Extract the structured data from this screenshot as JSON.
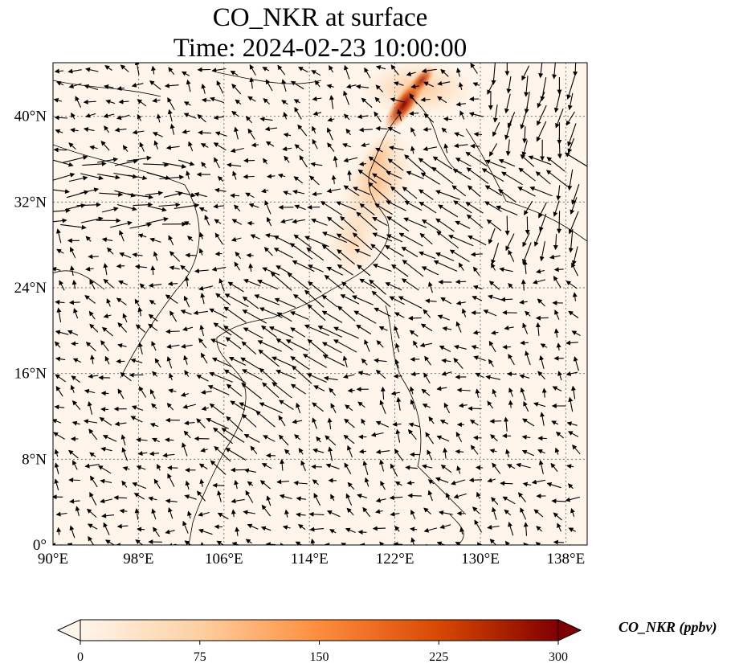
{
  "title_line1": "CO_NKR at surface",
  "title_line2": "Time: 2024-02-23 10:00:00",
  "colorbar": {
    "label": "CO_NKR (ppbv)",
    "ticks": [
      "0",
      "75",
      "150",
      "225",
      "300"
    ],
    "range": [
      0,
      300
    ],
    "colormap": [
      "#fff5eb",
      "#fdd0a2",
      "#fd8d3c",
      "#d94801",
      "#7f0000"
    ],
    "extend": "both"
  },
  "map": {
    "lon_range": [
      90,
      140
    ],
    "lat_range": [
      0,
      45
    ],
    "lon_ticks": [
      {
        "value": 90,
        "label": "90°E"
      },
      {
        "value": 98,
        "label": "98°E"
      },
      {
        "value": 106,
        "label": "106°E"
      },
      {
        "value": 114,
        "label": "114°E"
      },
      {
        "value": 122,
        "label": "122°E"
      },
      {
        "value": 130,
        "label": "130°E"
      },
      {
        "value": 138,
        "label": "138°E"
      }
    ],
    "lat_ticks": [
      {
        "value": 0,
        "label": "0°"
      },
      {
        "value": 8,
        "label": "8°N"
      },
      {
        "value": 16,
        "label": "16°N"
      },
      {
        "value": 24,
        "label": "24°N"
      },
      {
        "value": 32,
        "label": "32°N"
      },
      {
        "value": 40,
        "label": "40°N"
      }
    ],
    "gridlines": true,
    "background_color": "#fff5eb",
    "plume_color": "#b30000"
  }
}
